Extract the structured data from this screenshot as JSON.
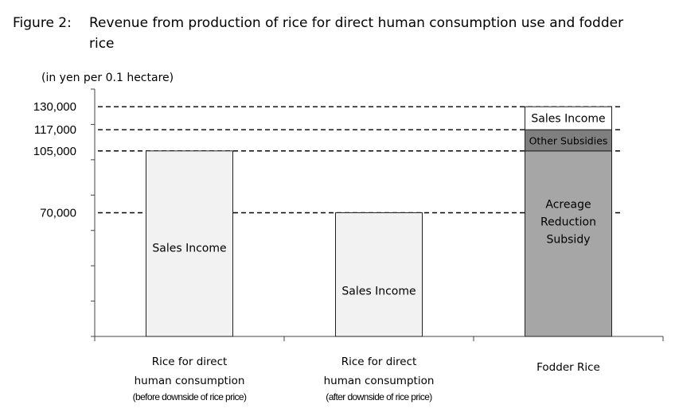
{
  "figure": {
    "label": "Figure 2:",
    "title": "Revenue from production of rice for direct human consumption use and fodder rice",
    "unit": "(in yen per 0.1 hectare)"
  },
  "chart_data": {
    "type": "bar",
    "stacked": true,
    "title": "Revenue from production of rice for direct human consumption use and fodder rice",
    "ylabel": "(in yen per 0.1 hectare)",
    "ylim": [
      0,
      140000
    ],
    "labeled_ticks": [
      "130,000",
      "117,000",
      "105,000",
      "70,000"
    ],
    "reference_lines": [
      130000,
      117000,
      105000,
      70000
    ],
    "categories": [
      {
        "line1": "Rice for direct",
        "line2": "human consumption",
        "note": "(before downside of rice price)"
      },
      {
        "line1": "Rice for direct",
        "line2": "human consumption",
        "note": "(after downside of rice price)"
      },
      {
        "line1": "Fodder Rice",
        "line2": "",
        "note": ""
      }
    ],
    "bars": [
      {
        "category_index": 0,
        "segments": [
          {
            "label": "Sales Income",
            "label_lines": [
              "Sales Income"
            ],
            "value": 105000,
            "color": "#f2f2f2"
          }
        ]
      },
      {
        "category_index": 1,
        "segments": [
          {
            "label": "Sales Income",
            "label_lines": [
              "Sales Income"
            ],
            "value": 70000,
            "color": "#f2f2f2"
          }
        ]
      },
      {
        "category_index": 2,
        "segments": [
          {
            "label": "Acreage Reduction Subsidy",
            "label_lines": [
              "Acreage",
              "Reduction",
              "Subsidy"
            ],
            "value": 105000,
            "color": "#a6a6a6"
          },
          {
            "label": "Other Subsidies",
            "label_lines": [
              "Other Subsidies"
            ],
            "value": 12000,
            "color": "#7f7f7f"
          },
          {
            "label": "Sales Income",
            "label_lines": [
              "Sales Income"
            ],
            "value": 13000,
            "color": "#ffffff"
          }
        ]
      }
    ],
    "grid": false,
    "legend": "none"
  }
}
